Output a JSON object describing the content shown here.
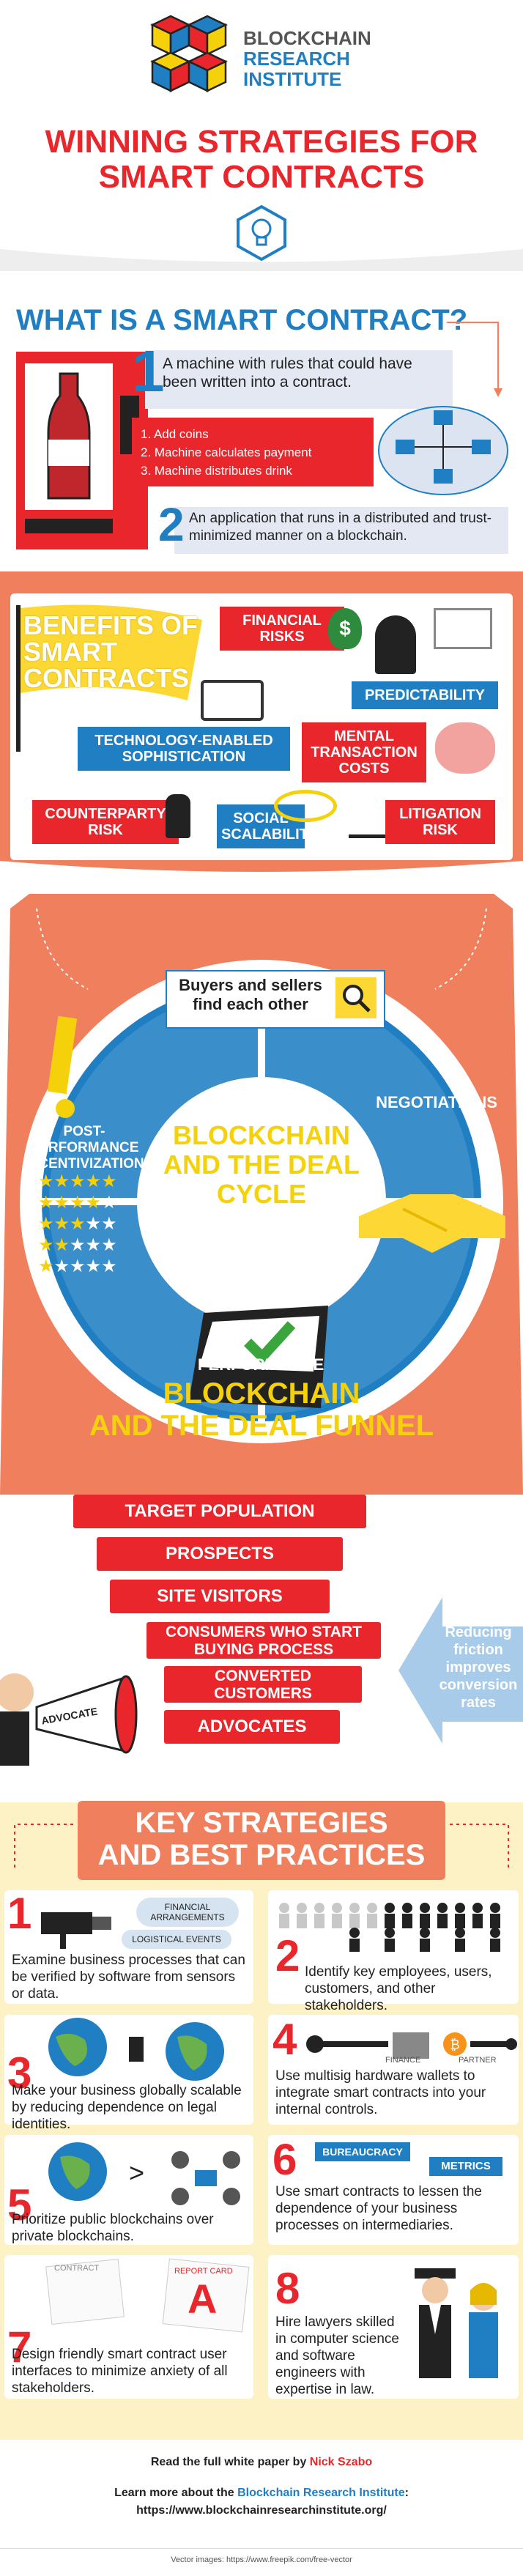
{
  "header": {
    "brand_line1": "BLOCKCHAIN",
    "brand_line2": "RESEARCH",
    "brand_line3": "INSTITUTE",
    "title_line1": "WINNING STRATEGIES FOR",
    "title_line2": "SMART CONTRACTS"
  },
  "what_is": {
    "heading": "WHAT IS A SMART CONTRACT?",
    "def1_num": "1",
    "def1_text": "A machine with rules that could have been written into a contract.",
    "steps": [
      "1. Add coins",
      "2. Machine calculates payment",
      "3. Machine distributes drink"
    ],
    "def2_num": "2",
    "def2_text": "An application that runs in a distributed and trust-minimized manner on a blockchain."
  },
  "benefits": {
    "flag_text": "BENEFITS OF SMART CONTRACTS",
    "financial_risks": "FINANCIAL RISKS",
    "predictability": "PREDICTABILITY",
    "tech_sophistication": "TECHNOLOGY-ENABLED SOPHISTICATION",
    "mental_costs": "MENTAL TRANSACTION COSTS",
    "counterparty_risk": "COUNTERPARTY RISK",
    "social_scalability": "SOCIAL SCALABILITY",
    "litigation_risk": "LITIGATION RISK"
  },
  "deal_cycle": {
    "center_title": "BLOCKCHAIN AND THE DEAL CYCLE",
    "find": "Buyers and sellers find each other",
    "negotiations": "NEGOTIATIONS",
    "performance": "PERFORMANCE",
    "incentivization": "POST-PERFORMANCE INCENTIVIZATION"
  },
  "funnel": {
    "heading_line1": "BLOCKCHAIN",
    "heading_line2": "AND THE DEAL FUNNEL",
    "stages": [
      "TARGET POPULATION",
      "PROSPECTS",
      "SITE VISITORS",
      "CONSUMERS WHO START BUYING PROCESS",
      "CONVERTED CUSTOMERS",
      "ADVOCATES"
    ],
    "callout": "Reducing friction improves conversion rates",
    "megaphone_label": "ADVOCATE"
  },
  "strategies": {
    "heading_line1": "KEY STRATEGIES",
    "heading_line2": "AND BEST PRACTICES",
    "items": [
      {
        "num": "1",
        "text": "Examine business processes that can be verified by software from sensors or data.",
        "tag1": "FINANCIAL ARRANGEMENTS",
        "tag2": "LOGISTICAL EVENTS"
      },
      {
        "num": "2",
        "text": "Identify key employees, users, customers, and other stakeholders."
      },
      {
        "num": "3",
        "text": "Make your business globally scalable by reducing dependence on legal identities."
      },
      {
        "num": "4",
        "text": "Use multisig hardware wallets to integrate smart contracts into your internal controls.",
        "tag1": "FINANCE",
        "tag2": "PARTNER"
      },
      {
        "num": "5",
        "text": "Prioritize public blockchains over private blockchains."
      },
      {
        "num": "6",
        "text": "Use smart contracts to lessen the dependence of your business processes on intermediaries.",
        "tag1": "BUREAUCRACY",
        "tag2": "METRICS"
      },
      {
        "num": "7",
        "text": "Design friendly smart contract user interfaces to minimize anxiety of all stakeholders.",
        "tag1": "CONTRACT",
        "tag2": "REPORT CARD",
        "grade": "A"
      },
      {
        "num": "8",
        "text": "Hire lawyers skilled in computer science and software engineers with expertise in law."
      }
    ]
  },
  "footer": {
    "read_prefix": "Read the full white paper by ",
    "author": "Nick Szabo",
    "learn_prefix": "Learn more about the ",
    "institute": "Blockchain Research Institute",
    "learn_suffix": ":",
    "url": "https://www.blockchainresearchinstitute.org/",
    "credit": "Vector images: https://www.freepik.com/free-vector"
  },
  "colors": {
    "red": "#e8262c",
    "blue": "#1f7fc2",
    "orange": "#f07f5e",
    "yellow": "#fdd835",
    "cream": "#fdf1c6"
  }
}
